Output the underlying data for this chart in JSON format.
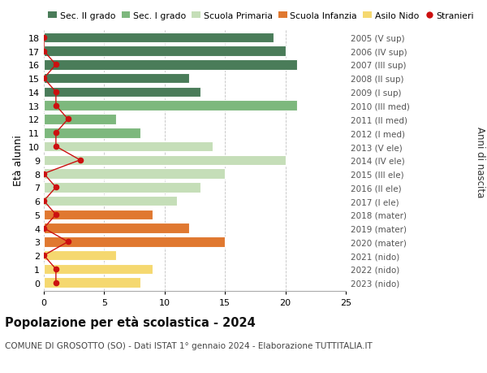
{
  "ages": [
    18,
    17,
    16,
    15,
    14,
    13,
    12,
    11,
    10,
    9,
    8,
    7,
    6,
    5,
    4,
    3,
    2,
    1,
    0
  ],
  "bar_values": [
    19,
    20,
    21,
    12,
    13,
    21,
    6,
    8,
    14,
    20,
    15,
    13,
    11,
    9,
    12,
    15,
    6,
    9,
    8
  ],
  "bar_colors": [
    "#4a7c59",
    "#4a7c59",
    "#4a7c59",
    "#4a7c59",
    "#4a7c59",
    "#7db87d",
    "#7db87d",
    "#7db87d",
    "#c5deb8",
    "#c5deb8",
    "#c5deb8",
    "#c5deb8",
    "#c5deb8",
    "#e07830",
    "#e07830",
    "#e07830",
    "#f5d870",
    "#f5d870",
    "#f5d870"
  ],
  "stranieri_values": [
    0,
    0,
    1,
    0,
    1,
    1,
    2,
    1,
    1,
    3,
    0,
    1,
    0,
    1,
    0,
    2,
    0,
    1,
    1
  ],
  "right_labels": [
    "2005 (V sup)",
    "2006 (IV sup)",
    "2007 (III sup)",
    "2008 (II sup)",
    "2009 (I sup)",
    "2010 (III med)",
    "2011 (II med)",
    "2012 (I med)",
    "2013 (V ele)",
    "2014 (IV ele)",
    "2015 (III ele)",
    "2016 (II ele)",
    "2017 (I ele)",
    "2018 (mater)",
    "2019 (mater)",
    "2020 (mater)",
    "2021 (nido)",
    "2022 (nido)",
    "2023 (nido)"
  ],
  "legend_labels": [
    "Sec. II grado",
    "Sec. I grado",
    "Scuola Primaria",
    "Scuola Infanzia",
    "Asilo Nido",
    "Stranieri"
  ],
  "legend_colors": [
    "#4a7c59",
    "#7db87d",
    "#c5deb8",
    "#e07830",
    "#f5d870",
    "#cc1010"
  ],
  "ylabel": "Età alunni",
  "right_ylabel": "Anni di nascita",
  "title": "Popolazione per età scolastica - 2024",
  "subtitle": "COMUNE DI GROSOTTO (SO) - Dati ISTAT 1° gennaio 2024 - Elaborazione TUTTITALIA.IT",
  "xlim": [
    0,
    25
  ],
  "background_color": "#ffffff",
  "bar_edge_color": "#ffffff",
  "grid_color": "#bbbbbb"
}
